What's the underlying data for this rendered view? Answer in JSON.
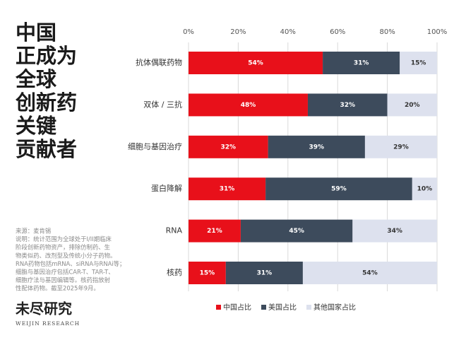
{
  "chart_data": {
    "type": "stacked-bar-horizontal",
    "title": [
      "中国",
      "正成为",
      "全球",
      "创新药",
      "关键",
      "贡献者"
    ],
    "notes": [
      "来源：麦肯锡",
      "说明：统计范围为全球处于I/II期临床",
      "阶段创新药物资产，排除仿制药、生",
      "物类似药、改剂型及传统小分子药物。",
      "RNA药物包括mRNA、siRNA与RNAi等；",
      "细胞与基因治疗包括CAR-T、TAR-T、",
      "细胞疗法与基因编辑等。核药指放射",
      "性配体药物。截至2025年9月。"
    ],
    "logo": {
      "name": "未尽研究",
      "subtitle": "WEIJIN RESEARCH"
    },
    "categories": [
      "抗体偶联药物",
      "双体 / 三抗",
      "细胞与基因治疗",
      "蛋白降解",
      "RNA",
      "核药"
    ],
    "series": [
      {
        "name": "中国占比",
        "color": "#e8101a",
        "values": [
          54,
          48,
          32,
          31,
          21,
          15
        ],
        "value_labels": [
          "54%",
          "48%",
          "32%",
          "31%",
          "21%",
          "15%"
        ]
      },
      {
        "name": "美国占比",
        "color": "#3d4b5c",
        "values": [
          31,
          32,
          39,
          59,
          45,
          31
        ],
        "value_labels": [
          "31%",
          "32%",
          "39%",
          "59%",
          "45%",
          "31%"
        ]
      },
      {
        "name": "其他国家占比",
        "color": "#dde1ee",
        "values": [
          15,
          20,
          29,
          10,
          34,
          54
        ],
        "value_labels": [
          "15%",
          "20%",
          "29%",
          "10%",
          "34%",
          "54%"
        ]
      }
    ],
    "xlim": [
      0,
      100
    ],
    "xticks": [
      {
        "value": 0,
        "label": "0%"
      },
      {
        "value": 20,
        "label": "20%"
      },
      {
        "value": 40,
        "label": "40%"
      },
      {
        "value": 60,
        "label": "60%"
      },
      {
        "value": 80,
        "label": "80%"
      },
      {
        "value": 100,
        "label": "100%"
      }
    ],
    "grid": true,
    "legend": "bottom"
  }
}
